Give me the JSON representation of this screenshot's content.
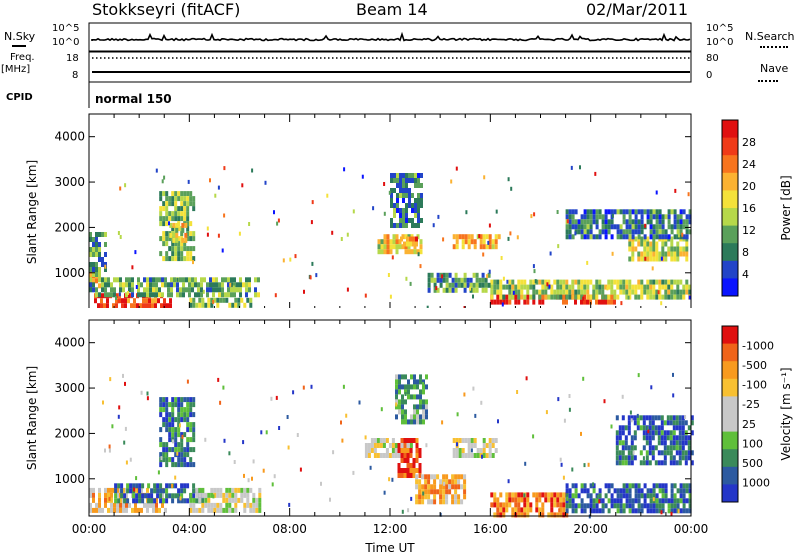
{
  "header": {
    "title": "Stokkseyri (fitACF)",
    "beam": "Beam 14",
    "date": "02/Mar/2011"
  },
  "summary_labels": {
    "nsky": "N.Sky",
    "nsky_ticks": [
      "10^5",
      "10^0"
    ],
    "nsearch": "N.Search",
    "nsearch_ticks": [
      "10^5",
      "10^0"
    ],
    "freq": "Freq.",
    "freq_unit": "[MHz]",
    "freq_ticks": [
      "18",
      "8"
    ],
    "nave": "Nave",
    "nave_ticks": [
      "80",
      "0"
    ],
    "cpid": "CPID",
    "cpid_value": "normal 150"
  },
  "chart_data": [
    {
      "type": "heatmap",
      "panel": "power",
      "xlabel": "",
      "ylabel": "Slant Range [km]",
      "yticks": [
        "1000",
        "2000",
        "3000",
        "4000"
      ],
      "ylim": [
        180,
        4500
      ],
      "xlim": [
        0,
        24
      ],
      "colorbar_label": "Power [dB]",
      "colorbar_ticks": [
        "4",
        "8",
        "12",
        "16",
        "20",
        "24",
        "28"
      ],
      "colorbar_colors": [
        "#0a14ff",
        "#2244c8",
        "#2c7a5a",
        "#5aa05a",
        "#b6d84a",
        "#f4e23a",
        "#fbb232",
        "#f7741e",
        "#ef3a18",
        "#e01010"
      ],
      "blobs": [
        {
          "t0": 0.0,
          "t1": 0.4,
          "r0": 700,
          "r1": 1100,
          "level": 0.7
        },
        {
          "t0": 0.2,
          "t1": 3.2,
          "r0": 250,
          "r1": 550,
          "level": 0.85
        },
        {
          "t0": 0.0,
          "t1": 6.8,
          "r0": 500,
          "r1": 900,
          "level": 0.35
        },
        {
          "t0": 0.0,
          "t1": 0.6,
          "r0": 1000,
          "r1": 1900,
          "level": 0.3
        },
        {
          "t0": 2.8,
          "t1": 4.2,
          "r0": 1300,
          "r1": 2800,
          "level": 0.4
        },
        {
          "t0": 3.2,
          "t1": 3.9,
          "r0": 1700,
          "r1": 2100,
          "level": 0.55
        },
        {
          "t0": 4.0,
          "t1": 6.5,
          "r0": 250,
          "r1": 450,
          "level": 0.4
        },
        {
          "t0": 11.5,
          "t1": 13.2,
          "r0": 1500,
          "r1": 1850,
          "level": 0.55
        },
        {
          "t0": 12.4,
          "t1": 13.1,
          "r0": 1600,
          "r1": 1800,
          "level": 0.75
        },
        {
          "t0": 14.5,
          "t1": 16.3,
          "r0": 1550,
          "r1": 1850,
          "level": 0.6
        },
        {
          "t0": 12.0,
          "t1": 13.3,
          "r0": 2000,
          "r1": 3200,
          "level": 0.25
        },
        {
          "t0": 16.0,
          "t1": 18.2,
          "r0": 300,
          "r1": 520,
          "level": 0.95
        },
        {
          "t0": 18.5,
          "t1": 21.0,
          "r0": 300,
          "r1": 520,
          "level": 0.85
        },
        {
          "t0": 16.0,
          "t1": 24.0,
          "r0": 500,
          "r1": 850,
          "level": 0.45
        },
        {
          "t0": 21.5,
          "t1": 23.8,
          "r0": 1300,
          "r1": 1800,
          "level": 0.5
        },
        {
          "t0": 19.0,
          "t1": 24.0,
          "r0": 1800,
          "r1": 2400,
          "level": 0.25
        },
        {
          "t0": 13.5,
          "t1": 16.0,
          "r0": 600,
          "r1": 1000,
          "level": 0.3
        }
      ]
    },
    {
      "type": "heatmap",
      "panel": "velocity",
      "xlabel": "Time UT",
      "ylabel": "Slant Range [km]",
      "xticks": [
        "00:00",
        "04:00",
        "08:00",
        "12:00",
        "16:00",
        "20:00",
        "00:00"
      ],
      "yticks": [
        "1000",
        "2000",
        "3000",
        "4000"
      ],
      "ylim": [
        180,
        4500
      ],
      "xlim": [
        0,
        24
      ],
      "colorbar_label": "Velocity [m s⁻¹]",
      "colorbar_ticks": [
        "1000",
        "500",
        "100",
        "25",
        "-25",
        "-100",
        "-500",
        "-1000"
      ],
      "colorbar_colors": [
        "#2436c8",
        "#2c5aa0",
        "#3a8a5a",
        "#5fbf3a",
        "#c8c8c8",
        "#c8c8c8",
        "#f8c032",
        "#f89a1e",
        "#f0641a",
        "#e01010"
      ],
      "blobs": [
        {
          "t0": 0.0,
          "t1": 3.0,
          "r0": 250,
          "r1": 800,
          "level": 0.65
        },
        {
          "t0": 1.0,
          "t1": 4.5,
          "r0": 500,
          "r1": 900,
          "level": 0.15
        },
        {
          "t0": 2.8,
          "t1": 4.2,
          "r0": 1300,
          "r1": 2800,
          "level": 0.2
        },
        {
          "t0": 4.0,
          "t1": 6.8,
          "r0": 300,
          "r1": 800,
          "level": 0.5
        },
        {
          "t0": 11.0,
          "t1": 12.8,
          "r0": 1500,
          "r1": 1900,
          "level": 0.5
        },
        {
          "t0": 12.3,
          "t1": 13.2,
          "r0": 1100,
          "r1": 1900,
          "level": 0.92
        },
        {
          "t0": 14.5,
          "t1": 16.2,
          "r0": 1500,
          "r1": 1900,
          "level": 0.5
        },
        {
          "t0": 16.0,
          "t1": 19.0,
          "r0": 250,
          "r1": 700,
          "level": 0.8
        },
        {
          "t0": 19.0,
          "t1": 24.0,
          "r0": 250,
          "r1": 900,
          "level": 0.15
        },
        {
          "t0": 21.0,
          "t1": 24.0,
          "r0": 1400,
          "r1": 2400,
          "level": 0.15
        },
        {
          "t0": 13.0,
          "t1": 15.0,
          "r0": 500,
          "r1": 1100,
          "level": 0.7
        },
        {
          "t0": 12.2,
          "t1": 13.5,
          "r0": 2200,
          "r1": 3300,
          "level": 0.3
        }
      ]
    }
  ]
}
